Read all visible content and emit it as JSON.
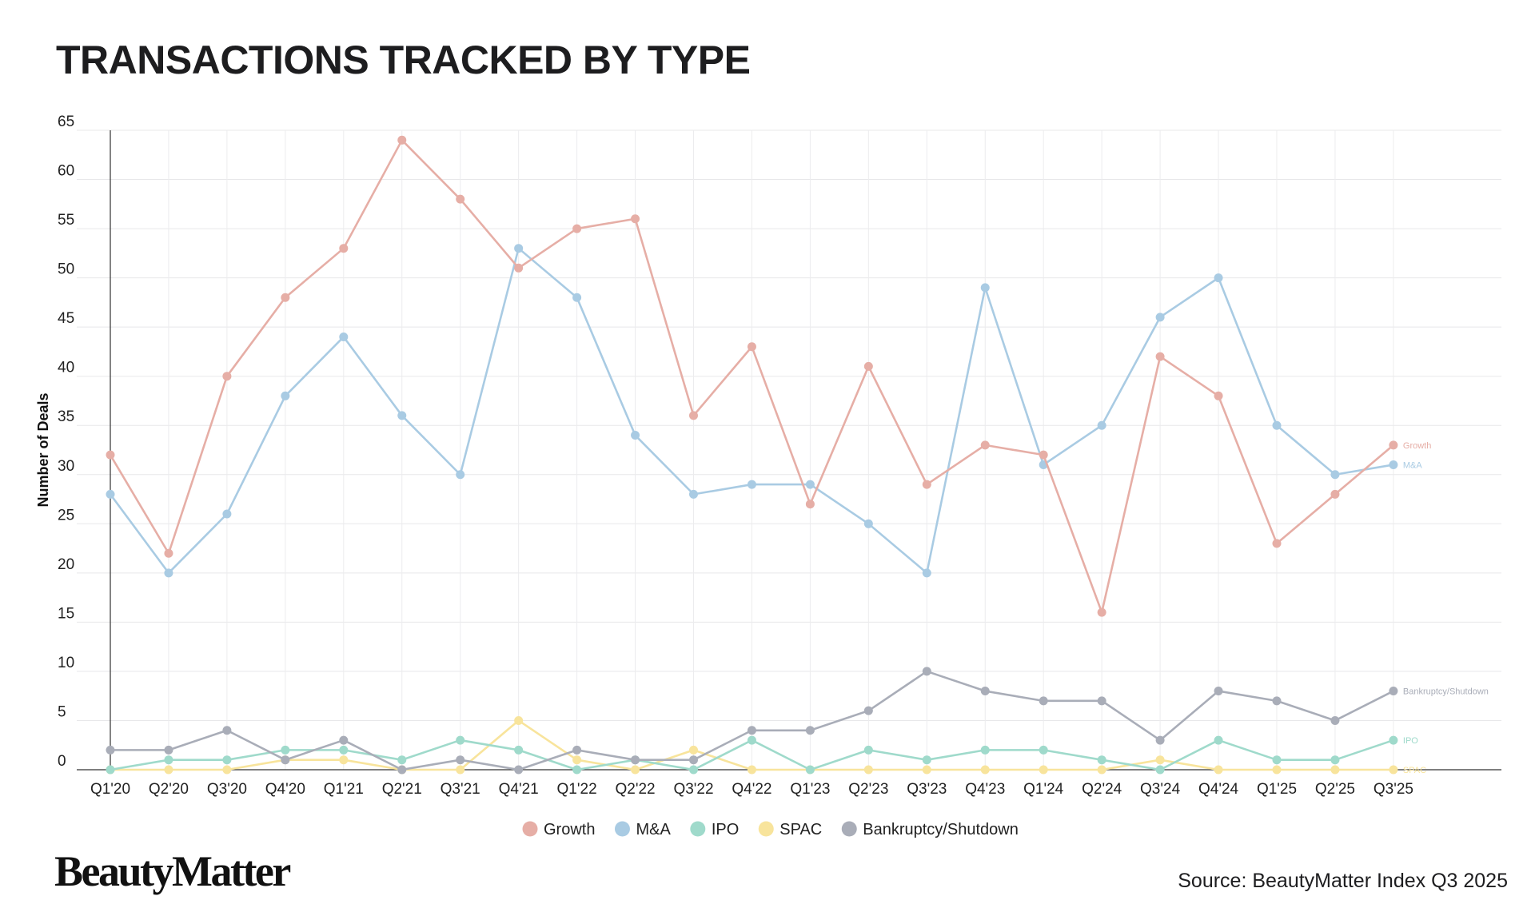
{
  "header": {
    "title": "TRANSACTIONS TRACKED BY TYPE"
  },
  "footer": {
    "brand": "BeautyMatter",
    "source": "Source: BeautyMatter Index Q3 2025"
  },
  "chart_data": {
    "type": "line",
    "title": "TRANSACTIONS TRACKED BY TYPE",
    "xlabel": "",
    "ylabel": "Number of Deals",
    "ylim": [
      0,
      65
    ],
    "yticks": [
      0,
      5,
      10,
      15,
      20,
      25,
      30,
      35,
      40,
      45,
      50,
      55,
      60,
      65
    ],
    "grid": true,
    "legend_position": "bottom-center",
    "categories": [
      "Q1'20",
      "Q2'20",
      "Q3'20",
      "Q4'20",
      "Q1'21",
      "Q2'21",
      "Q3'21",
      "Q4'21",
      "Q1'22",
      "Q2'22",
      "Q3'22",
      "Q4'22",
      "Q1'23",
      "Q2'23",
      "Q3'23",
      "Q4'23",
      "Q1'24",
      "Q2'24",
      "Q3'24",
      "Q4'24",
      "Q1'25",
      "Q2'25",
      "Q3'25"
    ],
    "series": [
      {
        "name": "Growth",
        "color": "#e6aea6",
        "values": [
          32,
          22,
          40,
          48,
          53,
          64,
          58,
          51,
          55,
          56,
          36,
          43,
          27,
          41,
          29,
          33,
          32,
          16,
          42,
          38,
          23,
          28,
          33
        ]
      },
      {
        "name": "M&A",
        "color": "#a9cbe3",
        "values": [
          28,
          20,
          26,
          38,
          44,
          36,
          30,
          53,
          48,
          34,
          28,
          29,
          29,
          25,
          20,
          49,
          31,
          35,
          46,
          50,
          35,
          30,
          31
        ]
      },
      {
        "name": "IPO",
        "color": "#9fdacb",
        "values": [
          0,
          1,
          1,
          2,
          2,
          1,
          3,
          2,
          0,
          1,
          0,
          3,
          0,
          2,
          1,
          2,
          2,
          1,
          0,
          3,
          1,
          1,
          3
        ]
      },
      {
        "name": "SPAC",
        "color": "#f8e49c",
        "values": [
          0,
          0,
          0,
          1,
          1,
          0,
          0,
          5,
          1,
          0,
          2,
          0,
          0,
          0,
          0,
          0,
          0,
          0,
          1,
          0,
          0,
          0,
          0
        ]
      },
      {
        "name": "Bankruptcy/Shutdown",
        "color": "#a9adb8",
        "values": [
          2,
          2,
          4,
          1,
          3,
          0,
          1,
          0,
          2,
          1,
          1,
          4,
          4,
          6,
          10,
          8,
          7,
          7,
          3,
          8,
          7,
          5,
          8
        ]
      }
    ],
    "end_labels": [
      "Growth",
      "M&A",
      "IPO",
      "SPAC",
      "Bankruptcy/Shutdown"
    ]
  }
}
